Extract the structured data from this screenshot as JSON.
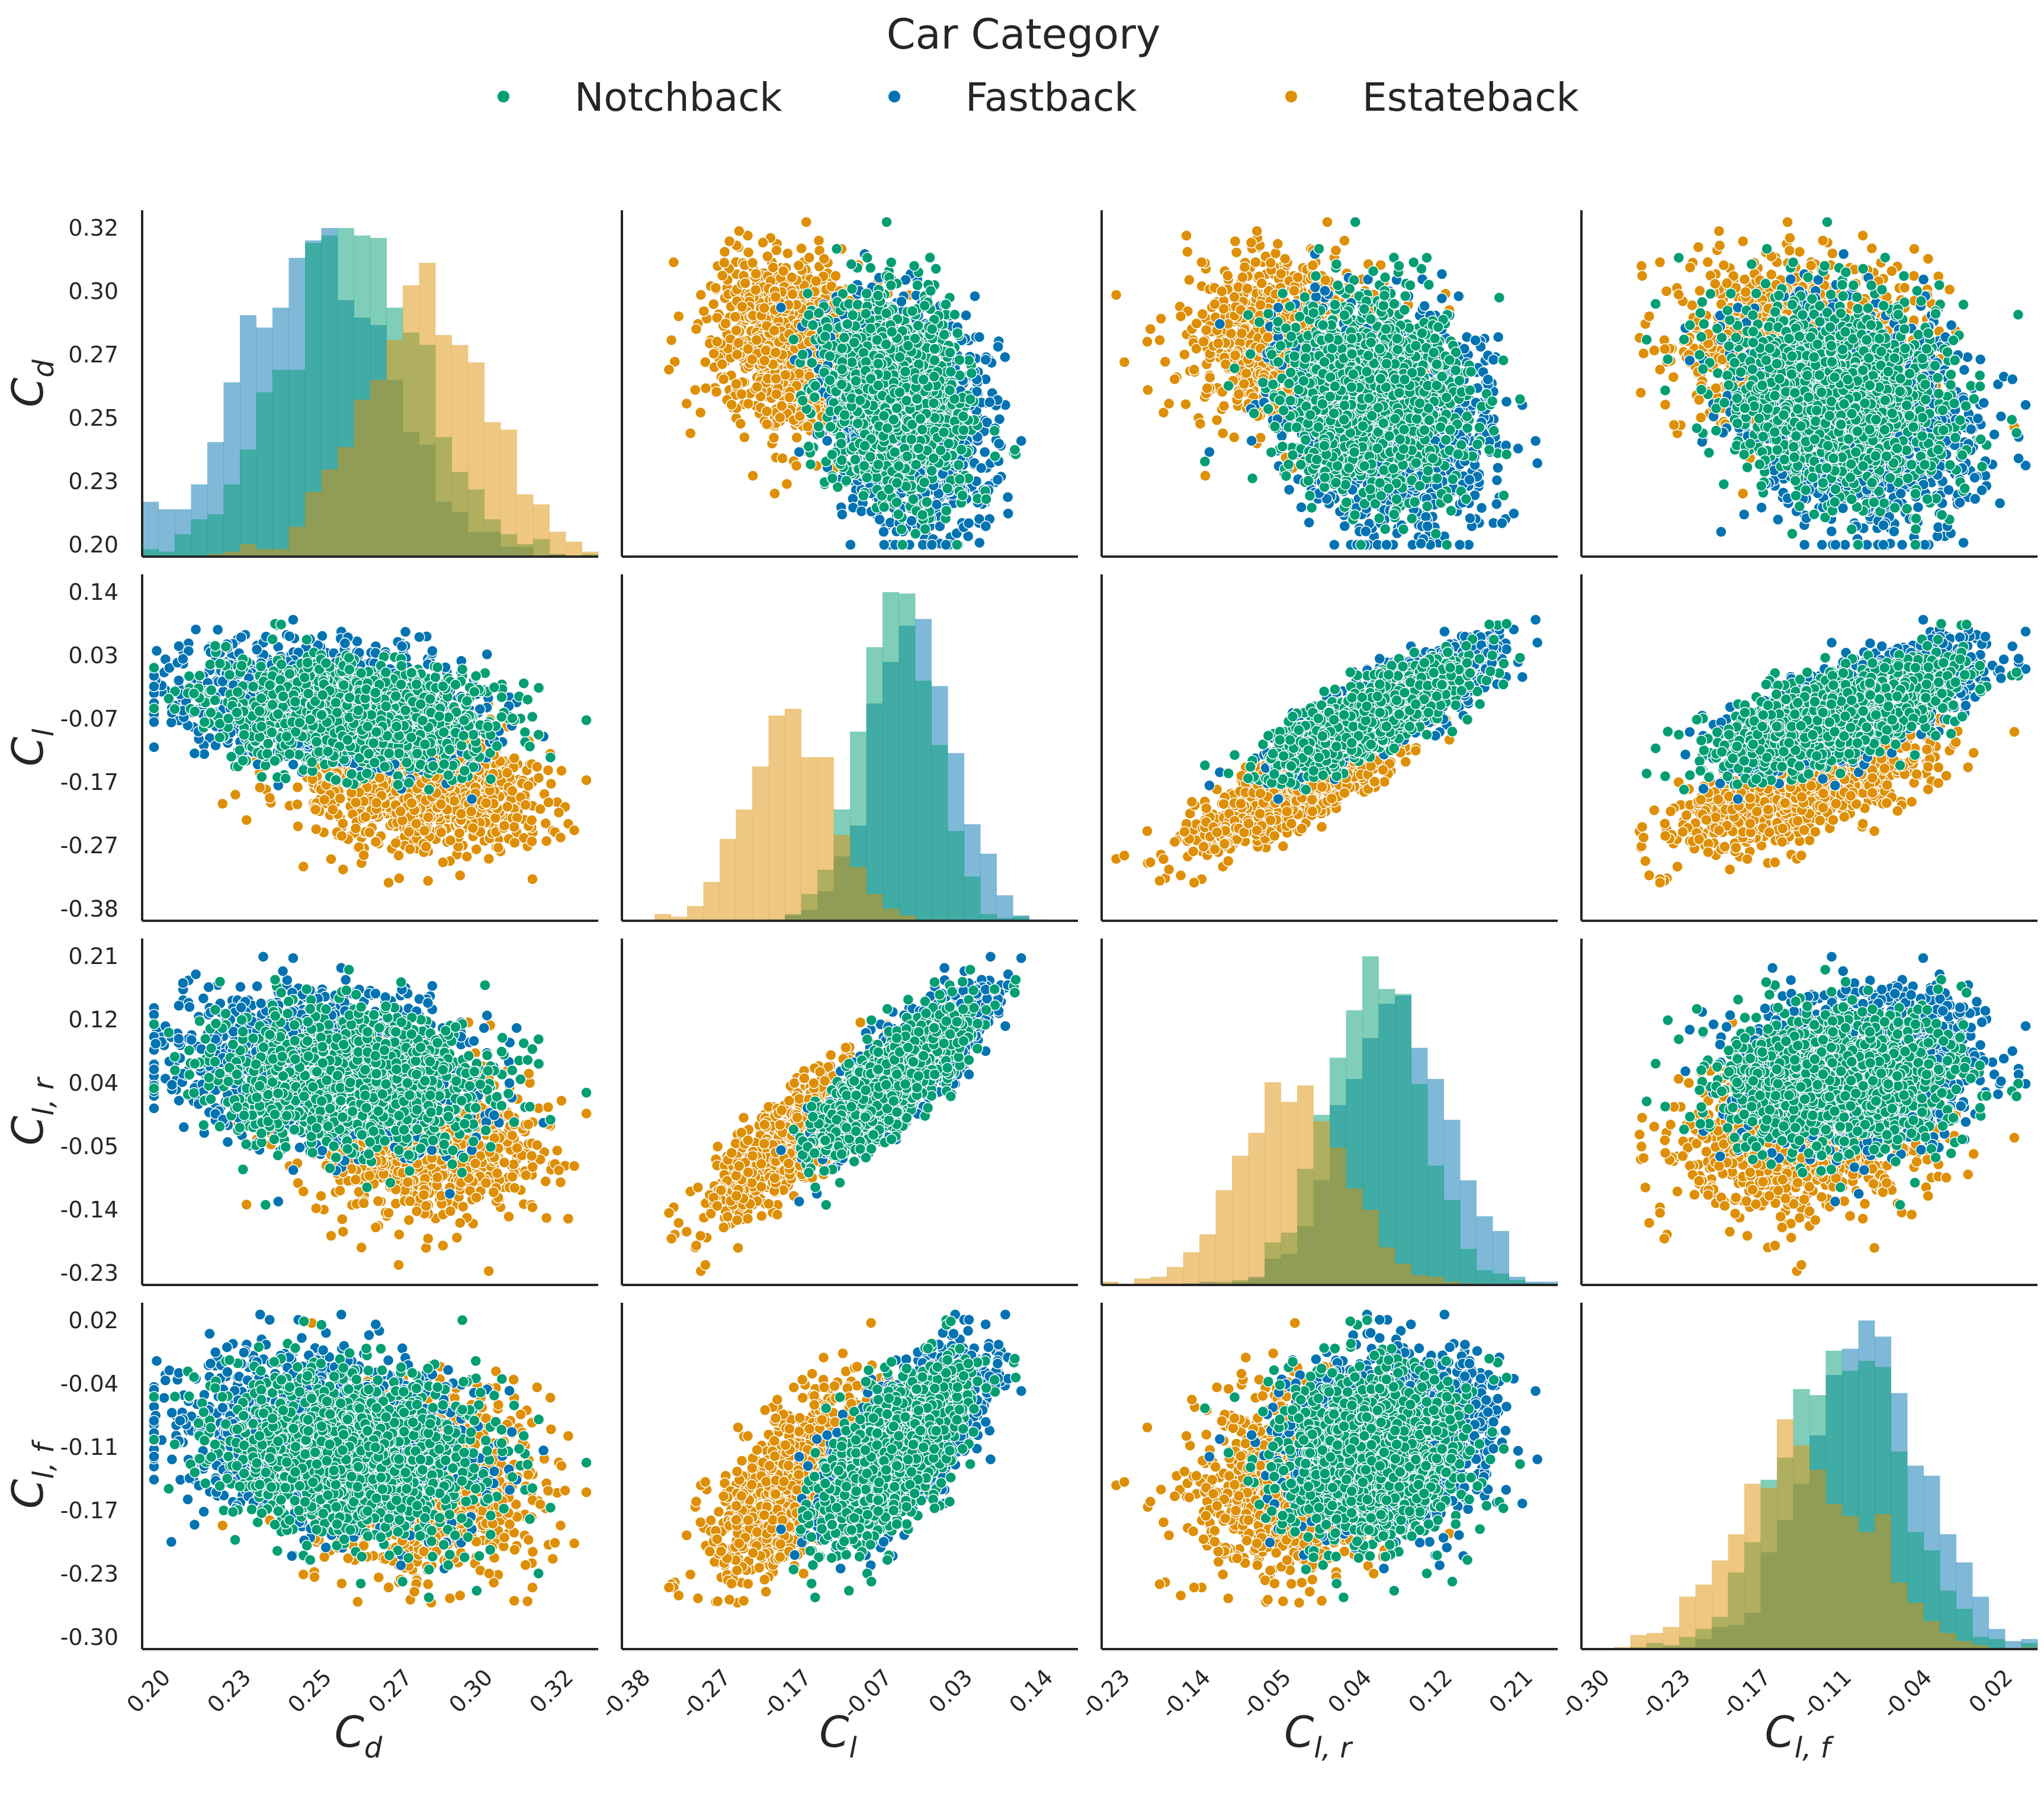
{
  "legend": {
    "title": "Car Category",
    "entries": [
      {
        "label": "Notchback",
        "color": "#029e73"
      },
      {
        "label": "Fastback",
        "color": "#0173b2"
      },
      {
        "label": "Estateback",
        "color": "#de8f05"
      }
    ]
  },
  "chart_data": {
    "type": "scatter",
    "subtype": "pairplot",
    "title": "Car Category",
    "variables": [
      {
        "id": "Cd",
        "base": "C",
        "sub": "d",
        "range": [
          0.195,
          0.325
        ],
        "ticks": [
          "0.20",
          "0.23",
          "0.25",
          "0.27",
          "0.30",
          "0.32"
        ]
      },
      {
        "id": "Cl",
        "base": "C",
        "sub": "l",
        "range": [
          -0.4,
          0.15
        ],
        "ticks": [
          "-0.38",
          "-0.27",
          "-0.17",
          "-0.07",
          "0.03",
          "0.14"
        ]
      },
      {
        "id": "Clr",
        "base": "C",
        "sub": "l, r",
        "range": [
          -0.245,
          0.225
        ],
        "ticks": [
          "-0.23",
          "-0.14",
          "-0.05",
          "0.04",
          "0.12",
          "0.21"
        ]
      },
      {
        "id": "Clf",
        "base": "C",
        "sub": "l, f",
        "range": [
          -0.315,
          0.03
        ],
        "ticks": [
          "-0.30",
          "-0.23",
          "-0.17",
          "-0.11",
          "-0.04",
          "0.02"
        ]
      }
    ],
    "series": [
      {
        "name": "Notchback",
        "color": "#029e73",
        "mean": [
          0.255,
          -0.07,
          0.035,
          -0.12
        ],
        "std": [
          0.02,
          0.045,
          0.05,
          0.045
        ],
        "hist_bins": 25
      },
      {
        "name": "Fastback",
        "color": "#0173b2",
        "mean": [
          0.245,
          -0.05,
          0.055,
          -0.1
        ],
        "std": [
          0.021,
          0.048,
          0.053,
          0.045
        ],
        "hist_bins": 25
      },
      {
        "name": "Estateback",
        "color": "#de8f05",
        "mean": [
          0.275,
          -0.2,
          -0.05,
          -0.15
        ],
        "std": [
          0.018,
          0.05,
          0.055,
          0.05
        ],
        "hist_bins": 25
      }
    ],
    "xlabels": [
      "Cd",
      "Cl",
      "Cl,r",
      "Cl,f"
    ],
    "ylabels": [
      "Cd",
      "Cl",
      "Cl,r",
      "Cl,f"
    ],
    "diagonal": "histogram",
    "off_diagonal": "scatter",
    "legend_position": "top-center",
    "grid": false
  }
}
